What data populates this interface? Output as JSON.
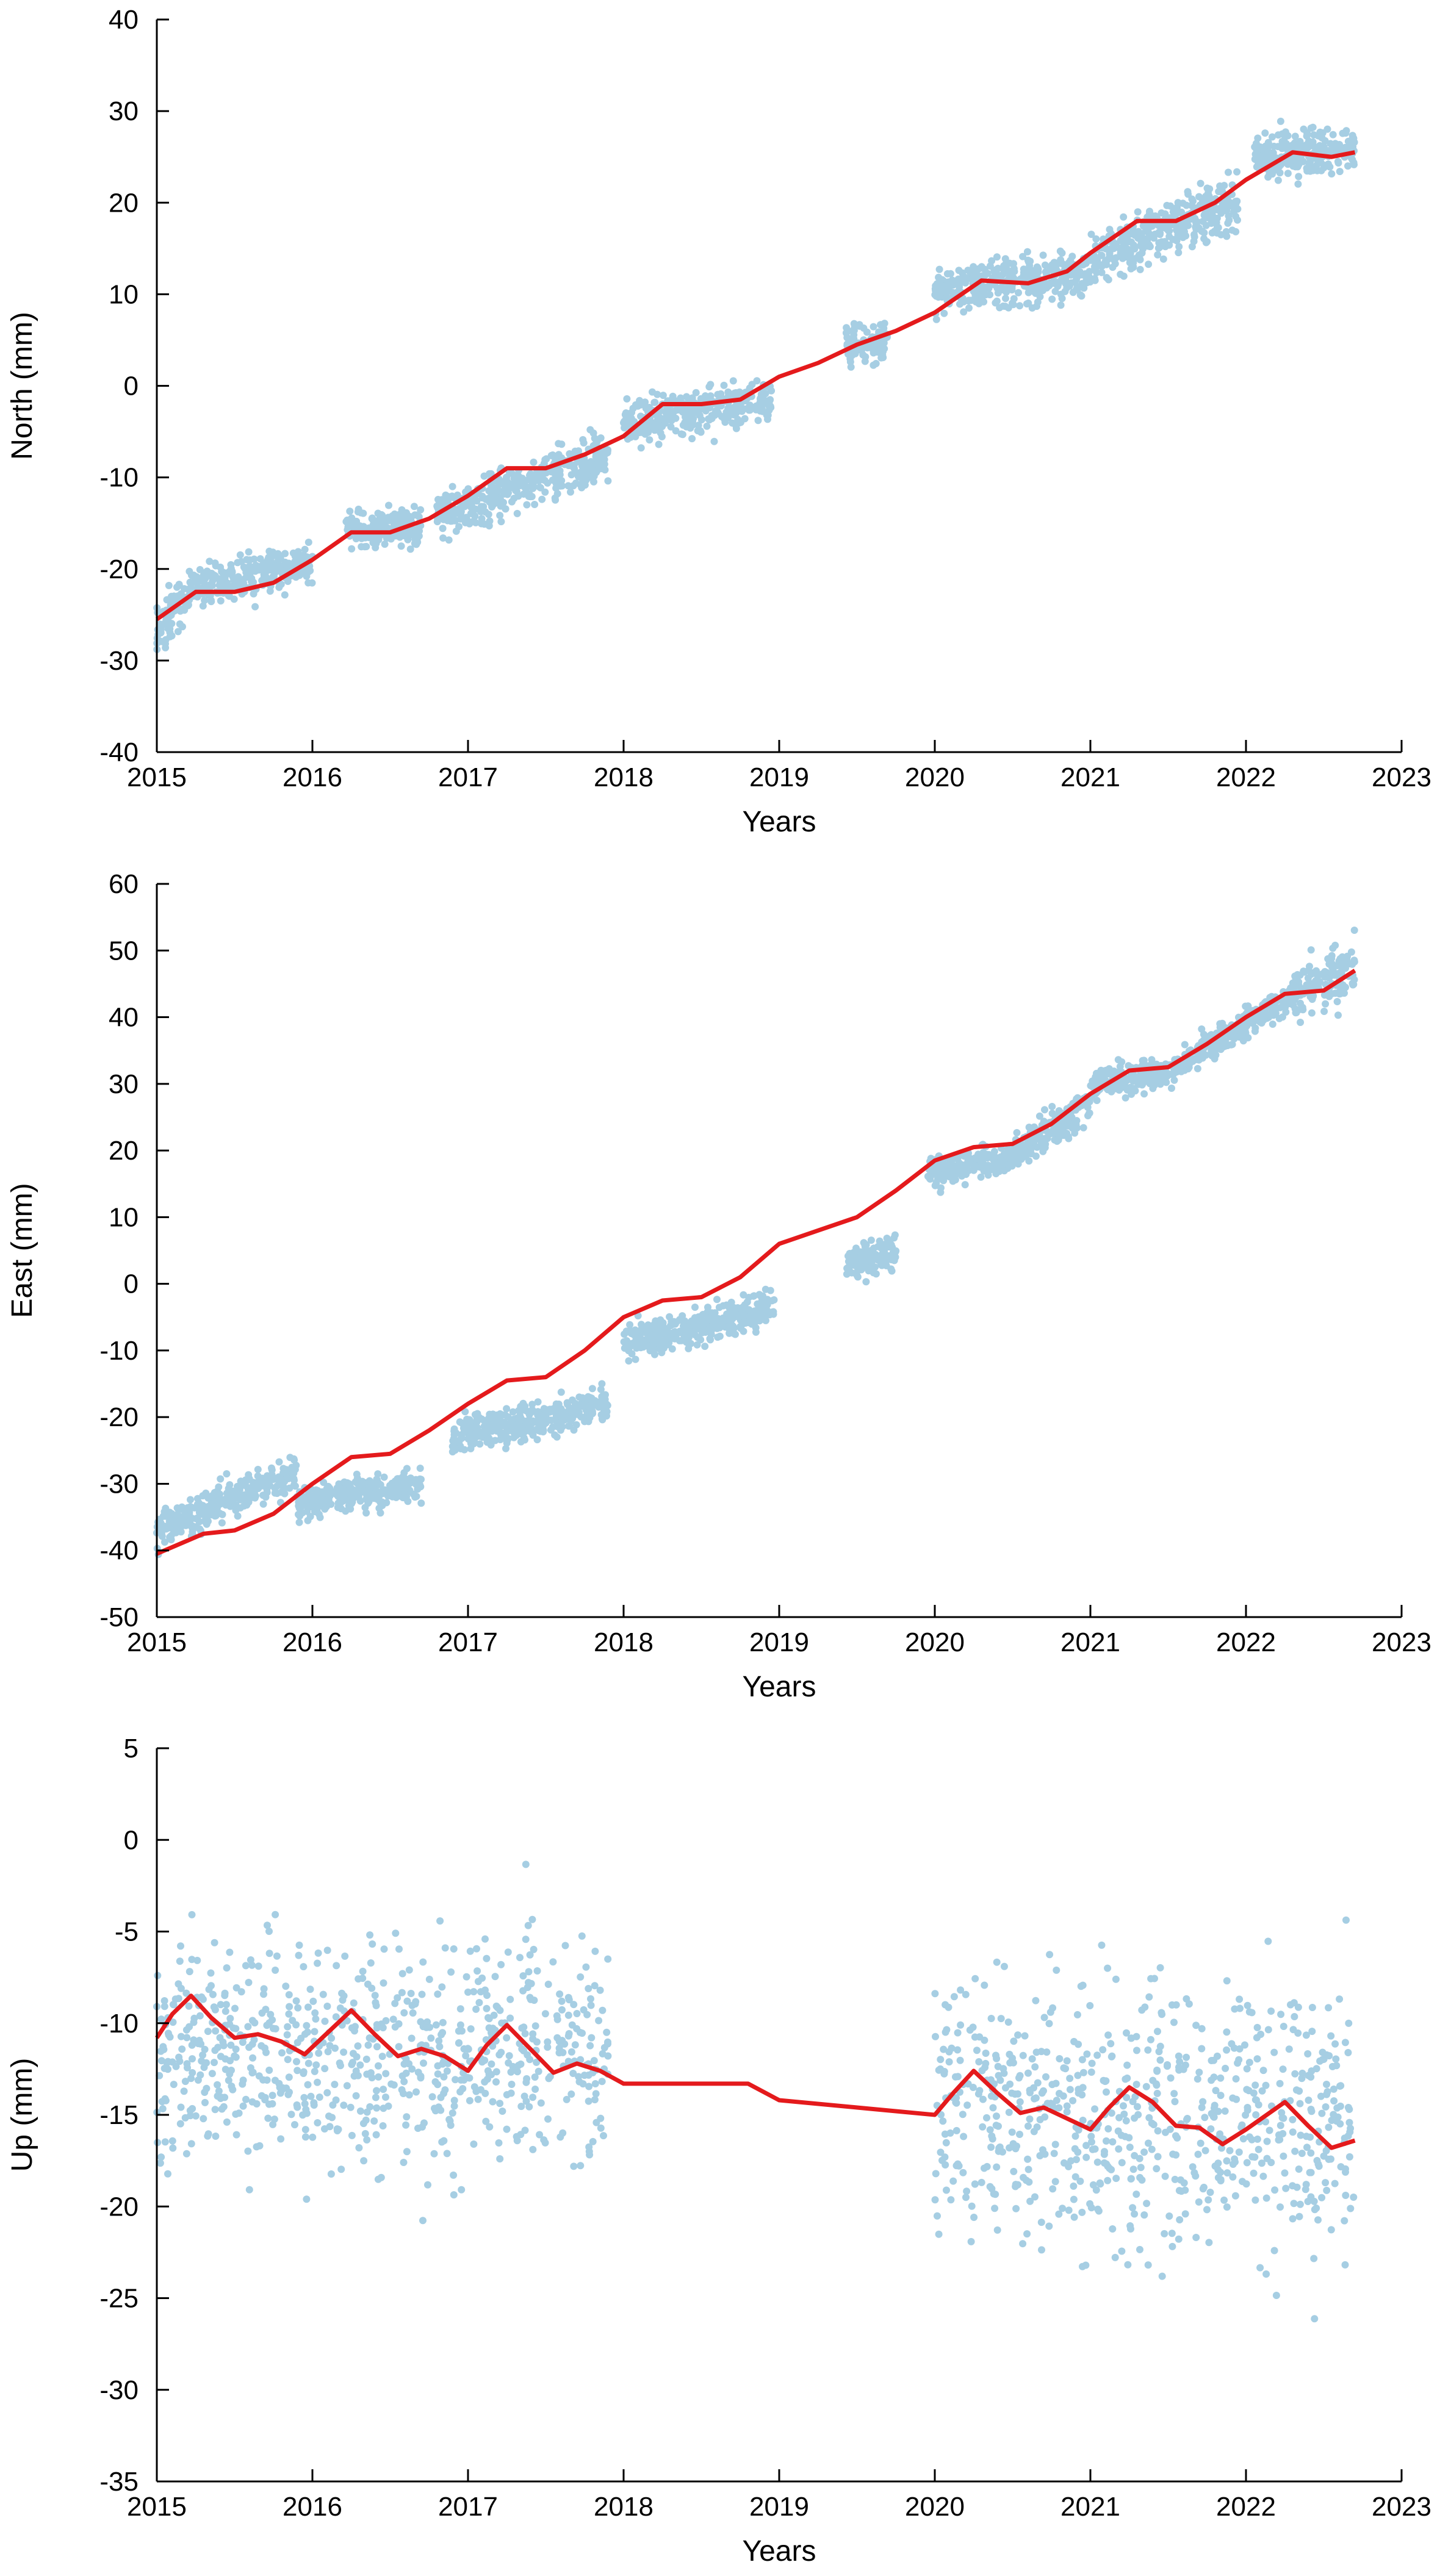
{
  "colors": {
    "points": "#a6cee3",
    "trend": "#e41a1c",
    "axis": "#000000",
    "background": "#ffffff"
  },
  "chart_data": [
    {
      "type": "scatter",
      "xlabel": "Years",
      "ylabel": "North (mm)",
      "xlim": [
        2015,
        2023
      ],
      "ylim": [
        -40,
        40
      ],
      "xticks": [
        "2015",
        "2016",
        "2017",
        "2018",
        "2019",
        "2020",
        "2021",
        "2022",
        "2023"
      ],
      "yticks": [
        "-40",
        "-30",
        "-20",
        "-10",
        "0",
        "10",
        "20",
        "30",
        "40"
      ],
      "grid": false,
      "legend": "none",
      "trend": {
        "x": [
          2015.0,
          2015.25,
          2015.5,
          2015.75,
          2016.0,
          2016.25,
          2016.5,
          2016.75,
          2017.0,
          2017.25,
          2017.5,
          2017.75,
          2018.0,
          2018.25,
          2018.5,
          2018.75,
          2019.0,
          2019.25,
          2019.5,
          2019.75,
          2020.0,
          2020.3,
          2020.6,
          2020.85,
          2021.0,
          2021.3,
          2021.55,
          2021.8,
          2022.0,
          2022.3,
          2022.55,
          2022.7
        ],
        "y": [
          -25.5,
          -22.5,
          -22.5,
          -21.5,
          -19.0,
          -16.0,
          -16.0,
          -14.5,
          -12.0,
          -9.0,
          -9.0,
          -7.5,
          -5.5,
          -2.0,
          -2.0,
          -1.5,
          1.0,
          2.5,
          4.5,
          6.0,
          8.0,
          11.5,
          11.2,
          12.5,
          14.5,
          18.0,
          18.0,
          20.0,
          22.5,
          25.5,
          25.0,
          25.5
        ]
      },
      "clusters": [
        {
          "x": [
            2015.0,
            2015.2
          ],
          "y": [
            -27,
            -23
          ],
          "spread": 2.2
        },
        {
          "x": [
            2015.2,
            2016.0
          ],
          "y": [
            -22,
            -19.5
          ],
          "spread": 1.6
        },
        {
          "x": [
            2016.2,
            2016.7
          ],
          "y": [
            -15.5,
            -15.5
          ],
          "spread": 1.5
        },
        {
          "x": [
            2016.8,
            2017.9
          ],
          "y": [
            -14,
            -7.5
          ],
          "spread": 1.8
        },
        {
          "x": [
            2018.0,
            2018.95
          ],
          "y": [
            -4,
            -1.5
          ],
          "spread": 1.6
        },
        {
          "x": [
            2019.43,
            2019.7
          ],
          "y": [
            4.5,
            5
          ],
          "spread": 1.6
        },
        {
          "x": [
            2020.0,
            2021.0
          ],
          "y": [
            10.5,
            12.5
          ],
          "spread": 1.8
        },
        {
          "x": [
            2021.0,
            2021.95
          ],
          "y": [
            14,
            20
          ],
          "spread": 2.0
        },
        {
          "x": [
            2022.05,
            2022.7
          ],
          "y": [
            25,
            26
          ],
          "spread": 1.8
        }
      ]
    },
    {
      "type": "scatter",
      "xlabel": "Years",
      "ylabel": "East (mm)",
      "xlim": [
        2015,
        2023
      ],
      "ylim": [
        -50,
        60
      ],
      "xticks": [
        "2015",
        "2016",
        "2017",
        "2018",
        "2019",
        "2020",
        "2021",
        "2022",
        "2023"
      ],
      "yticks": [
        "-50",
        "-40",
        "-30",
        "-20",
        "-10",
        "0",
        "10",
        "20",
        "30",
        "40",
        "50",
        "60"
      ],
      "grid": false,
      "legend": "none",
      "trend": {
        "x": [
          2015.0,
          2015.3,
          2015.5,
          2015.75,
          2016.0,
          2016.25,
          2016.5,
          2016.75,
          2017.0,
          2017.25,
          2017.5,
          2017.75,
          2018.0,
          2018.25,
          2018.5,
          2018.75,
          2019.0,
          2019.25,
          2019.5,
          2019.75,
          2020.0,
          2020.25,
          2020.5,
          2020.75,
          2021.0,
          2021.25,
          2021.5,
          2021.75,
          2022.0,
          2022.25,
          2022.5,
          2022.7
        ],
        "y": [
          -40.5,
          -37.5,
          -37.0,
          -34.5,
          -30.0,
          -26.0,
          -25.5,
          -22.0,
          -18.0,
          -14.5,
          -14.0,
          -10.0,
          -5.0,
          -2.5,
          -2.0,
          1.0,
          6.0,
          8.0,
          10.0,
          14.0,
          18.5,
          20.5,
          21.0,
          24.0,
          28.5,
          32.0,
          32.5,
          36.0,
          40.0,
          43.5,
          44.0,
          47.0
        ]
      },
      "clusters": [
        {
          "x": [
            2015.0,
            2015.9
          ],
          "y": [
            -37,
            -28
          ],
          "spread": 1.8
        },
        {
          "x": [
            2015.9,
            2016.7
          ],
          "y": [
            -33,
            -30
          ],
          "spread": 1.8
        },
        {
          "x": [
            2016.9,
            2017.9
          ],
          "y": [
            -23,
            -18
          ],
          "spread": 1.8
        },
        {
          "x": [
            2018.0,
            2018.97
          ],
          "y": [
            -9,
            -3.5
          ],
          "spread": 1.8
        },
        {
          "x": [
            2019.43,
            2019.75
          ],
          "y": [
            3,
            5
          ],
          "spread": 1.8
        },
        {
          "x": [
            2019.95,
            2020.5
          ],
          "y": [
            17,
            19
          ],
          "spread": 1.6
        },
        {
          "x": [
            2020.5,
            2021.0
          ],
          "y": [
            19,
            27
          ],
          "spread": 1.8
        },
        {
          "x": [
            2021.0,
            2021.55
          ],
          "y": [
            30,
            32
          ],
          "spread": 1.6
        },
        {
          "x": [
            2021.55,
            2022.3
          ],
          "y": [
            33,
            43
          ],
          "spread": 1.6
        },
        {
          "x": [
            2022.3,
            2022.7
          ],
          "y": [
            43,
            48
          ],
          "spread": 3.0
        }
      ]
    },
    {
      "type": "scatter",
      "xlabel": "Years",
      "ylabel": "Up (mm)",
      "xlim": [
        2015,
        2023
      ],
      "ylim": [
        -35,
        5
      ],
      "xticks": [
        "2015",
        "2016",
        "2017",
        "2018",
        "2019",
        "2020",
        "2021",
        "2022",
        "2023"
      ],
      "yticks": [
        "-35",
        "-30",
        "-25",
        "-20",
        "-15",
        "-10",
        "-5",
        "0",
        "5"
      ],
      "grid": false,
      "legend": "none",
      "trend": {
        "x": [
          2015.0,
          2015.1,
          2015.22,
          2015.35,
          2015.5,
          2015.65,
          2015.8,
          2015.95,
          2016.1,
          2016.25,
          2016.4,
          2016.55,
          2016.7,
          2016.85,
          2017.0,
          2017.12,
          2017.25,
          2017.4,
          2017.55,
          2017.7,
          2017.85,
          2018.0,
          2018.4,
          2018.8,
          2019.0,
          2019.5,
          2020.0,
          2020.12,
          2020.25,
          2020.4,
          2020.55,
          2020.7,
          2020.85,
          2021.0,
          2021.12,
          2021.25,
          2021.4,
          2021.55,
          2021.7,
          2021.85,
          2022.0,
          2022.1,
          2022.25,
          2022.4,
          2022.55,
          2022.7
        ],
        "y": [
          -10.8,
          -9.5,
          -8.5,
          -9.7,
          -10.8,
          -10.6,
          -11.0,
          -11.7,
          -10.5,
          -9.3,
          -10.6,
          -11.8,
          -11.4,
          -11.8,
          -12.6,
          -11.2,
          -10.1,
          -11.4,
          -12.7,
          -12.2,
          -12.6,
          -13.3,
          -13.3,
          -13.3,
          -14.2,
          -14.6,
          -15.0,
          -13.8,
          -12.6,
          -13.8,
          -14.9,
          -14.6,
          -15.2,
          -15.8,
          -14.6,
          -13.5,
          -14.3,
          -15.6,
          -15.7,
          -16.6,
          -15.8,
          -15.2,
          -14.3,
          -15.6,
          -16.8,
          -16.4
        ]
      },
      "clusters": [
        {
          "x": [
            2015.0,
            2017.9
          ],
          "y": [
            -11.5,
            -11.5
          ],
          "spread": 4.2
        },
        {
          "x": [
            2020.0,
            2022.7
          ],
          "y": [
            -15.0,
            -15.0
          ],
          "spread": 5.2
        }
      ]
    }
  ]
}
